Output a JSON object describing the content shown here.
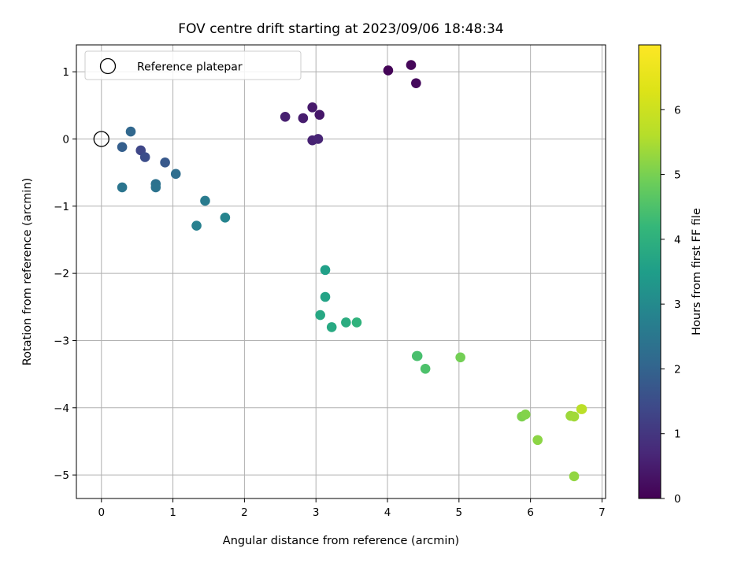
{
  "chart_data": {
    "type": "scatter",
    "title": "FOV centre drift starting at 2023/09/06 18:48:34",
    "xlabel": "Angular distance from reference (arcmin)",
    "ylabel": "Rotation from reference (arcmin)",
    "xlim": [
      -0.35,
      7.05
    ],
    "ylim": [
      -5.35,
      1.4
    ],
    "xticks": [
      0,
      1,
      2,
      3,
      4,
      5,
      6,
      7
    ],
    "xtick_labels": [
      "0",
      "1",
      "2",
      "3",
      "4",
      "5",
      "6",
      "7"
    ],
    "yticks": [
      -5,
      -4,
      -3,
      -2,
      -1,
      0,
      1
    ],
    "ytick_labels": [
      "−5",
      "−4",
      "−3",
      "−2",
      "−1",
      "0",
      "1"
    ],
    "grid": true,
    "legend": {
      "location": "upper-left",
      "entries": [
        {
          "label": "Reference platepar",
          "marker": "open-circle"
        }
      ]
    },
    "reference_point": {
      "x": 0,
      "y": 0
    },
    "colorbar": {
      "label": "Hours from first FF file",
      "colormap": "viridis",
      "range": [
        0,
        7
      ],
      "ticks": [
        0,
        1,
        2,
        3,
        4,
        5,
        6
      ],
      "tick_labels": [
        "0",
        "1",
        "2",
        "3",
        "4",
        "5",
        "6"
      ]
    },
    "points": [
      {
        "x": 4.01,
        "y": 1.02,
        "hours": 0.05
      },
      {
        "x": 4.33,
        "y": 1.1,
        "hours": 0.1
      },
      {
        "x": 4.4,
        "y": 0.83,
        "hours": 0.15
      },
      {
        "x": 3.05,
        "y": 0.36,
        "hours": 0.4
      },
      {
        "x": 2.95,
        "y": 0.47,
        "hours": 0.45
      },
      {
        "x": 2.82,
        "y": 0.31,
        "hours": 0.5
      },
      {
        "x": 2.57,
        "y": 0.33,
        "hours": 0.55
      },
      {
        "x": 2.95,
        "y": -0.02,
        "hours": 0.6
      },
      {
        "x": 3.03,
        "y": 0.0,
        "hours": 0.65
      },
      {
        "x": 0.55,
        "y": -0.17,
        "hours": 1.35
      },
      {
        "x": 0.61,
        "y": -0.27,
        "hours": 1.5
      },
      {
        "x": 0.89,
        "y": -0.35,
        "hours": 1.75
      },
      {
        "x": 0.29,
        "y": -0.12,
        "hours": 1.9
      },
      {
        "x": 0.41,
        "y": 0.11,
        "hours": 2.1
      },
      {
        "x": 1.04,
        "y": -0.52,
        "hours": 2.25
      },
      {
        "x": 0.76,
        "y": -0.67,
        "hours": 2.35
      },
      {
        "x": 0.76,
        "y": -0.72,
        "hours": 2.4
      },
      {
        "x": 0.29,
        "y": -0.72,
        "hours": 2.45
      },
      {
        "x": 1.45,
        "y": -0.92,
        "hours": 2.6
      },
      {
        "x": 1.33,
        "y": -1.29,
        "hours": 2.75
      },
      {
        "x": 1.73,
        "y": -1.17,
        "hours": 2.85
      },
      {
        "x": 3.13,
        "y": -1.95,
        "hours": 3.55
      },
      {
        "x": 3.13,
        "y": -2.35,
        "hours": 3.65
      },
      {
        "x": 3.06,
        "y": -2.62,
        "hours": 3.75
      },
      {
        "x": 3.22,
        "y": -2.8,
        "hours": 3.8
      },
      {
        "x": 3.42,
        "y": -2.73,
        "hours": 3.9
      },
      {
        "x": 3.57,
        "y": -2.73,
        "hours": 4.05
      },
      {
        "x": 4.42,
        "y": -3.23,
        "hours": 4.4
      },
      {
        "x": 4.41,
        "y": -3.23,
        "hours": 4.45
      },
      {
        "x": 4.53,
        "y": -3.42,
        "hours": 4.5
      },
      {
        "x": 5.02,
        "y": -3.25,
        "hours": 4.95
      },
      {
        "x": 5.88,
        "y": -4.13,
        "hours": 5.05
      },
      {
        "x": 5.93,
        "y": -4.1,
        "hours": 5.1
      },
      {
        "x": 6.1,
        "y": -4.48,
        "hours": 5.2
      },
      {
        "x": 6.61,
        "y": -5.02,
        "hours": 5.25
      },
      {
        "x": 6.56,
        "y": -4.12,
        "hours": 5.35
      },
      {
        "x": 6.61,
        "y": -4.13,
        "hours": 5.4
      },
      {
        "x": 6.71,
        "y": -4.02,
        "hours": 5.65
      },
      {
        "x": 6.72,
        "y": -4.02,
        "hours": 5.7
      }
    ]
  }
}
